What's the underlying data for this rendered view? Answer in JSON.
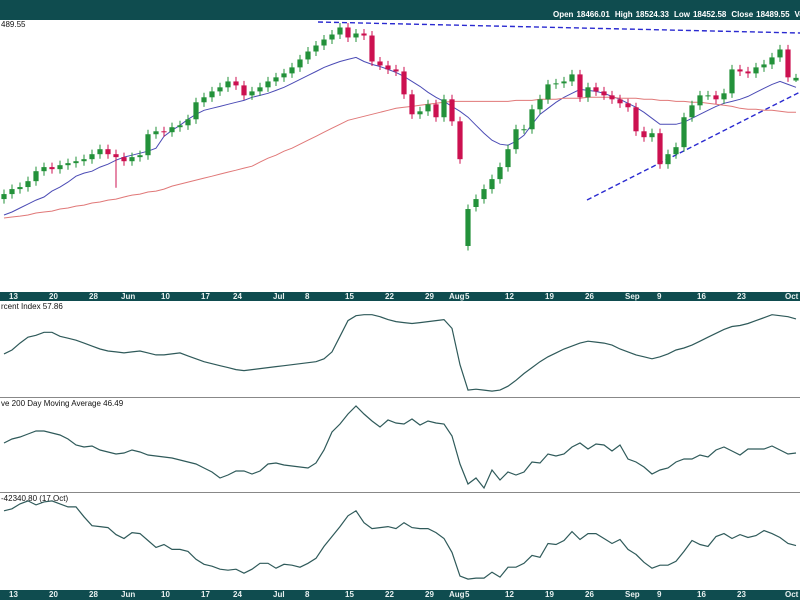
{
  "chart_data": [
    {
      "type": "candlestick",
      "price_label": "489.55",
      "header_labels": [
        "Open",
        "High",
        "Low",
        "Close",
        "Volume"
      ],
      "categories": [
        null,
        "13",
        null,
        null,
        null,
        null,
        "20",
        null,
        null,
        null,
        null,
        "28",
        null,
        null,
        null,
        "Jun",
        null,
        null,
        null,
        null,
        "10",
        null,
        null,
        null,
        null,
        "17",
        null,
        null,
        null,
        "24",
        null,
        null,
        null,
        null,
        "Jul",
        null,
        null,
        null,
        "8",
        null,
        null,
        null,
        null,
        "15",
        null,
        null,
        null,
        null,
        "22",
        null,
        null,
        null,
        null,
        "29",
        null,
        null,
        "Aug",
        null,
        "5",
        null,
        null,
        null,
        null,
        "12",
        null,
        null,
        null,
        null,
        "19",
        null,
        null,
        null,
        null,
        "26",
        null,
        null,
        null,
        null,
        "Sep",
        null,
        null,
        null,
        "9",
        null,
        null,
        null,
        null,
        "16",
        null,
        null,
        null,
        null,
        "23",
        null,
        null,
        null,
        null,
        null,
        "Oct",
        null
      ],
      "open": [
        17420,
        17464,
        17508,
        17526,
        17578,
        17666,
        17702,
        17684,
        17719,
        17737,
        17754,
        17772,
        17816,
        17860,
        17816,
        17790,
        17754,
        17790,
        17807,
        17992,
        18018,
        18010,
        18054,
        18071,
        18124,
        18274,
        18318,
        18370,
        18406,
        18458,
        18423,
        18335,
        18370,
        18406,
        18458,
        18494,
        18529,
        18582,
        18652,
        18722,
        18775,
        18828,
        18872,
        18934,
        18846,
        18881,
        18863,
        18634,
        18599,
        18564,
        18546,
        18344,
        18168,
        18194,
        18256,
        18142,
        18300,
        18106,
        17006,
        17350,
        17420,
        17508,
        17596,
        17702,
        17860,
        18036,
        18036,
        18212,
        18300,
        18432,
        18441,
        18458,
        18520,
        18318,
        18406,
        18370,
        18335,
        18300,
        18265,
        18230,
        18018,
        17966,
        18001,
        17728,
        17816,
        17878,
        18142,
        18247,
        18335,
        18335,
        18300,
        18353,
        18564,
        18546,
        18529,
        18582,
        18608,
        18670,
        18740,
        18466.01
      ],
      "high": [
        17504,
        17548,
        17566,
        17618,
        17706,
        17742,
        17742,
        17759,
        17777,
        17794,
        17812,
        17856,
        17900,
        17900,
        17856,
        17830,
        17830,
        17847,
        18032,
        18058,
        18058,
        18094,
        18111,
        18164,
        18314,
        18358,
        18410,
        18446,
        18498,
        18498,
        18463,
        18410,
        18446,
        18498,
        18534,
        18569,
        18622,
        18692,
        18762,
        18815,
        18868,
        18912,
        18974,
        18974,
        18921,
        18921,
        18903,
        18674,
        18639,
        18604,
        18586,
        18384,
        18234,
        18296,
        18296,
        18340,
        18340,
        18146,
        17372,
        17460,
        17548,
        17636,
        17742,
        17900,
        18076,
        18076,
        18252,
        18340,
        18472,
        18481,
        18498,
        18560,
        18560,
        18446,
        18446,
        18410,
        18375,
        18340,
        18305,
        18270,
        18058,
        18041,
        18041,
        17856,
        17918,
        18182,
        18287,
        18375,
        18375,
        18375,
        18393,
        18604,
        18604,
        18586,
        18622,
        18648,
        18710,
        18780,
        18780,
        18524.33
      ],
      "low": [
        17380,
        17424,
        17468,
        17486,
        17538,
        17626,
        17644,
        17644,
        17679,
        17697,
        17714,
        17732,
        17776,
        17776,
        17520,
        17714,
        17714,
        17750,
        17767,
        17952,
        17970,
        17970,
        18014,
        18031,
        18084,
        18234,
        18278,
        18330,
        18366,
        18383,
        18295,
        18295,
        18330,
        18366,
        18418,
        18454,
        18489,
        18542,
        18612,
        18682,
        18735,
        18788,
        18832,
        18806,
        18806,
        18823,
        18594,
        18559,
        18524,
        18506,
        18304,
        18128,
        18128,
        18154,
        18102,
        18102,
        18066,
        17732,
        16966,
        17310,
        17380,
        17468,
        17556,
        17662,
        17820,
        17996,
        17996,
        18172,
        18260,
        18392,
        18401,
        18418,
        18278,
        18278,
        18330,
        18295,
        18260,
        18225,
        18190,
        17978,
        17926,
        17926,
        17688,
        17688,
        17776,
        17838,
        18102,
        18207,
        18295,
        18260,
        18260,
        18313,
        18506,
        18489,
        18489,
        18542,
        18568,
        18630,
        18454,
        18452.58
      ],
      "close": [
        17464,
        17508,
        17526,
        17578,
        17666,
        17702,
        17684,
        17719,
        17737,
        17754,
        17772,
        17816,
        17860,
        17816,
        17790,
        17754,
        17790,
        17807,
        17992,
        18018,
        18010,
        18054,
        18071,
        18124,
        18274,
        18318,
        18370,
        18406,
        18458,
        18423,
        18335,
        18370,
        18406,
        18458,
        18494,
        18529,
        18582,
        18652,
        18722,
        18775,
        18828,
        18872,
        18934,
        18846,
        18881,
        18863,
        18634,
        18599,
        18564,
        18546,
        18344,
        18168,
        18194,
        18256,
        18142,
        18300,
        18106,
        17772,
        17332,
        17420,
        17508,
        17596,
        17702,
        17860,
        18036,
        18036,
        18212,
        18300,
        18432,
        18441,
        18458,
        18520,
        18318,
        18406,
        18370,
        18335,
        18300,
        18265,
        18230,
        18018,
        17966,
        18001,
        17728,
        17816,
        17878,
        18142,
        18247,
        18335,
        18335,
        18300,
        18353,
        18564,
        18546,
        18529,
        18582,
        18608,
        18670,
        18740,
        18494,
        18489.55
      ],
      "up_color": "#23913a",
      "down_color": "#cc1150",
      "ylim": [
        16600,
        19000
      ],
      "series": [
        {
          "color": "#4b4bb5",
          "values": [
            17279,
            17306,
            17341,
            17376,
            17411,
            17438,
            17490,
            17526,
            17570,
            17622,
            17649,
            17666,
            17702,
            17728,
            17763,
            17790,
            17807,
            17825,
            17842,
            17869,
            17974,
            18027,
            18071,
            18124,
            18168,
            18203,
            18221,
            18238,
            18256,
            18274,
            18291,
            18318,
            18335,
            18353,
            18379,
            18406,
            18441,
            18476,
            18511,
            18546,
            18582,
            18608,
            18634,
            18652,
            18670,
            18634,
            18608,
            18590,
            18564,
            18538,
            18502,
            18458,
            18414,
            18362,
            18318,
            18282,
            18238,
            18194,
            18142,
            18071,
            18001,
            17939,
            17904,
            17895,
            17930,
            17983,
            18080,
            18168,
            18221,
            18274,
            18318,
            18353,
            18388,
            18379,
            18370,
            18353,
            18326,
            18300,
            18265,
            18230,
            18186,
            18133,
            18080,
            18080,
            18080,
            18098,
            18133,
            18168,
            18203,
            18238,
            18265,
            18282,
            18300,
            18326,
            18362,
            18397,
            18432,
            18458,
            18432,
            18406
          ]
        },
        {
          "color": "#e07878",
          "values": [
            17253,
            17262,
            17270,
            17279,
            17297,
            17306,
            17314,
            17332,
            17341,
            17358,
            17367,
            17385,
            17394,
            17411,
            17420,
            17438,
            17455,
            17464,
            17482,
            17490,
            17508,
            17534,
            17552,
            17570,
            17587,
            17605,
            17622,
            17640,
            17658,
            17675,
            17693,
            17710,
            17746,
            17781,
            17807,
            17842,
            17869,
            17904,
            17939,
            17974,
            18010,
            18045,
            18080,
            18115,
            18133,
            18150,
            18168,
            18186,
            18203,
            18221,
            18230,
            18238,
            18247,
            18256,
            18265,
            18274,
            18282,
            18282,
            18282,
            18282,
            18282,
            18282,
            18282,
            18282,
            18291,
            18291,
            18291,
            18300,
            18300,
            18300,
            18309,
            18309,
            18309,
            18318,
            18318,
            18318,
            18318,
            18309,
            18309,
            18309,
            18300,
            18300,
            18291,
            18291,
            18282,
            18282,
            18274,
            18274,
            18265,
            18256,
            18247,
            18238,
            18221,
            18212,
            18212,
            18203,
            18203,
            18194,
            18186,
            18186
          ]
        }
      ]
    },
    {
      "type": "line",
      "title": "rcent Index 57.86",
      "color": "#2f5a5a",
      "ylim": [
        18,
        67
      ],
      "values": [
        40,
        42,
        45.5,
        48.5,
        49.5,
        51,
        51,
        49,
        48,
        47,
        45.5,
        44,
        42.5,
        41.5,
        41,
        40.5,
        41,
        41.5,
        40.5,
        39.5,
        39.5,
        40,
        40.5,
        39,
        37.5,
        36,
        35,
        34,
        33,
        32,
        31.5,
        32,
        32.5,
        33,
        33.5,
        34,
        34.5,
        35,
        35.5,
        36,
        37.5,
        41,
        49,
        57,
        59.5,
        60,
        60,
        59,
        57.5,
        56.5,
        56,
        55.5,
        56,
        56.5,
        57,
        57.5,
        53,
        34.5,
        21.5,
        22,
        21.5,
        21,
        21.5,
        23.5,
        26.5,
        30,
        33,
        36,
        38.5,
        40.5,
        42.5,
        44,
        45.5,
        46.5,
        46,
        45.5,
        44.5,
        42.5,
        41,
        39.5,
        38.5,
        37.5,
        38.5,
        40,
        42,
        43,
        44.5,
        46.5,
        48.5,
        50.5,
        52.5,
        54,
        54.5,
        55.5,
        57,
        58.5,
        60,
        59.5,
        59,
        57.86
      ]
    },
    {
      "type": "line",
      "title": "ve 200 Day Moving Average 46.49",
      "color": "#2f5a5a",
      "ylim": [
        27,
        74
      ],
      "values": [
        51.5,
        53.5,
        54.5,
        56,
        57.5,
        57.5,
        56.5,
        55.5,
        53.5,
        50.5,
        49.5,
        50,
        48,
        47,
        46,
        46.5,
        48,
        47,
        45.5,
        45,
        44.5,
        44,
        43,
        42,
        41,
        39,
        37,
        34,
        35.5,
        37.5,
        37.5,
        36,
        37.5,
        41,
        41.5,
        40.5,
        40,
        39.5,
        39,
        41.5,
        48,
        57,
        61,
        66,
        70,
        66,
        62.5,
        59.5,
        63,
        61.5,
        61,
        63.5,
        60.5,
        62.5,
        61.5,
        61,
        55,
        41,
        31,
        34,
        29,
        38,
        33,
        37,
        35.5,
        37,
        42,
        41.5,
        46,
        45,
        46,
        49.5,
        51.5,
        48.5,
        51,
        50.5,
        47.5,
        50.5,
        43.5,
        42,
        39.5,
        36,
        38,
        39,
        42,
        43.5,
        43.5,
        45.5,
        44.5,
        48,
        49.5,
        47.5,
        45.5,
        48.5,
        48.5,
        48.5,
        50,
        48,
        46,
        46.49
      ]
    },
    {
      "type": "line",
      "title": "-42340.80 (17 Oct)",
      "color": "#2f5a5a",
      "ylim": [
        -130000,
        64000
      ],
      "values": [
        28000,
        32000,
        42000,
        48000,
        40000,
        46000,
        48000,
        42000,
        36000,
        36000,
        16000,
        -2000,
        -4000,
        -6000,
        -20000,
        -28000,
        -16000,
        -18000,
        -32000,
        -46000,
        -40000,
        -50000,
        -50000,
        -54000,
        -70000,
        -80000,
        -84000,
        -90000,
        -92000,
        -90000,
        -98000,
        -90000,
        -78000,
        -78000,
        -88000,
        -80000,
        -82000,
        -86000,
        -78000,
        -68000,
        -44000,
        -24000,
        -4000,
        18000,
        28000,
        4000,
        -8000,
        -6000,
        -4000,
        -8000,
        4000,
        -6000,
        -8000,
        -8000,
        -16000,
        -28000,
        -56000,
        -104000,
        -110000,
        -108000,
        -108000,
        -96000,
        -106000,
        -86000,
        -86000,
        -78000,
        -62000,
        -66000,
        -38000,
        -40000,
        -32000,
        -14000,
        -30000,
        -18000,
        -18000,
        -28000,
        -38000,
        -30000,
        -50000,
        -60000,
        -76000,
        -88000,
        -82000,
        -82000,
        -74000,
        -54000,
        -32000,
        -40000,
        -44000,
        -24000,
        -18000,
        -28000,
        -20000,
        -26000,
        -22000,
        -12000,
        -18000,
        -26000,
        -38000,
        -42340.8
      ]
    }
  ]
}
